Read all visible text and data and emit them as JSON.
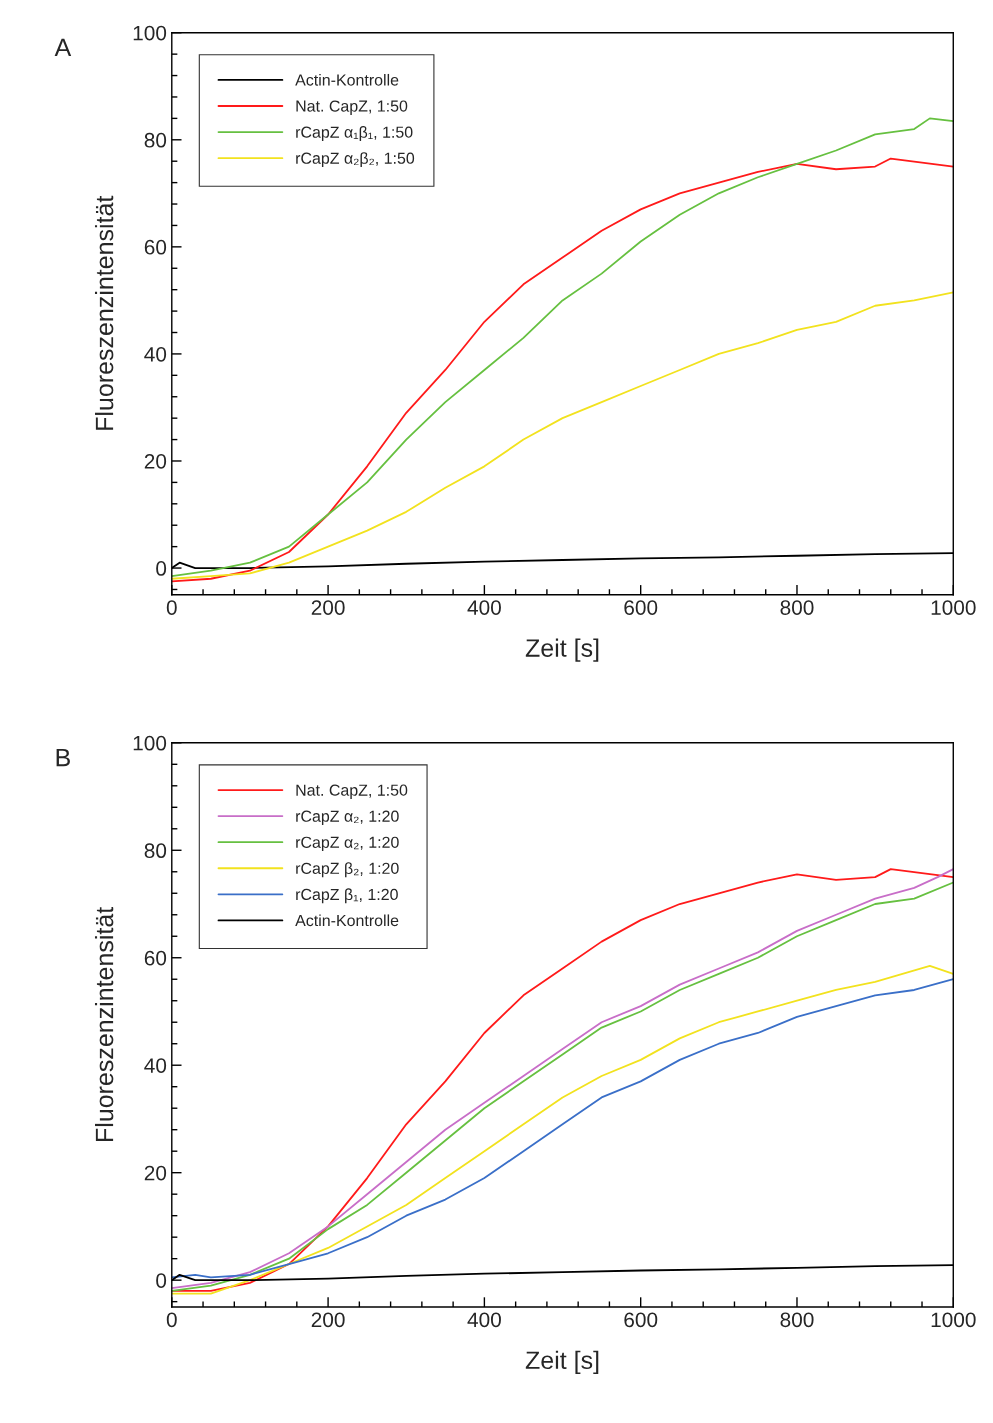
{
  "chart_data": [
    {
      "type": "line",
      "annotations": [
        "A"
      ],
      "xlabel": "Zeit [s]",
      "ylabel": "Fluoreszenzintensität",
      "xlim": [
        0,
        1000
      ],
      "ylim": [
        -5,
        100
      ],
      "xticks": [
        0,
        {
          "value": 40,
          "label": null
        },
        {
          "value": 80,
          "label": null
        },
        {
          "value": 120,
          "label": null
        },
        {
          "value": 160,
          "label": null
        },
        200,
        {
          "value": 240,
          "label": null
        },
        {
          "value": 280,
          "label": null
        },
        {
          "value": 320,
          "label": null
        },
        {
          "value": 360,
          "label": null
        },
        400,
        {
          "value": 440,
          "label": null
        },
        {
          "value": 480,
          "label": null
        },
        {
          "value": 520,
          "label": null
        },
        {
          "value": 560,
          "label": null
        },
        600,
        {
          "value": 640,
          "label": null
        },
        {
          "value": 680,
          "label": null
        },
        {
          "value": 720,
          "label": null
        },
        {
          "value": 760,
          "label": null
        },
        800,
        {
          "value": 840,
          "label": null
        },
        {
          "value": 880,
          "label": null
        },
        {
          "value": 920,
          "label": null
        },
        {
          "value": 960,
          "label": null
        },
        1000
      ],
      "yticks": [
        {
          "value": -4,
          "label": null
        },
        0,
        {
          "value": 4,
          "label": null
        },
        {
          "value": 8,
          "label": null
        },
        {
          "value": 12,
          "label": null
        },
        {
          "value": 16,
          "label": null
        },
        20,
        {
          "value": 24,
          "label": null
        },
        {
          "value": 28,
          "label": null
        },
        {
          "value": 32,
          "label": null
        },
        {
          "value": 36,
          "label": null
        },
        40,
        {
          "value": 44,
          "label": null
        },
        {
          "value": 48,
          "label": null
        },
        {
          "value": 52,
          "label": null
        },
        {
          "value": 56,
          "label": null
        },
        60,
        {
          "value": 64,
          "label": null
        },
        {
          "value": 68,
          "label": null
        },
        {
          "value": 72,
          "label": null
        },
        {
          "value": 76,
          "label": null
        },
        80,
        {
          "value": 84,
          "label": null
        },
        {
          "value": 88,
          "label": null
        },
        {
          "value": 92,
          "label": null
        },
        {
          "value": 96,
          "label": null
        },
        100
      ],
      "grid": false,
      "legend": "top left",
      "marker": "none",
      "line_style": "solid",
      "series": [
        {
          "name": "Actin-Kontrolle",
          "color": "#000000",
          "x": [
            0,
            10,
            30,
            100,
            200,
            300,
            400,
            500,
            600,
            700,
            800,
            900,
            1000
          ],
          "values": [
            0,
            1,
            0,
            0,
            0.3,
            0.8,
            1.2,
            1.5,
            1.8,
            2,
            2.3,
            2.6,
            2.8
          ]
        },
        {
          "name": "Nat. CapZ, 1:50",
          "color": "#ff1a1a",
          "x": [
            0,
            50,
            100,
            150,
            200,
            250,
            300,
            350,
            400,
            450,
            500,
            550,
            600,
            650,
            700,
            750,
            800,
            850,
            900,
            920,
            1000
          ],
          "values": [
            -2.5,
            -2,
            -0.5,
            3,
            10,
            19,
            29,
            37,
            46,
            53,
            58,
            63,
            67,
            70,
            72,
            74,
            75.5,
            74.5,
            75,
            76.5,
            75
          ]
        },
        {
          "name": "rCapZ α₁β₁, 1:50",
          "color": "#66c040",
          "x": [
            0,
            50,
            100,
            150,
            200,
            250,
            300,
            350,
            400,
            450,
            500,
            550,
            600,
            650,
            700,
            750,
            800,
            850,
            900,
            950,
            970,
            1000
          ],
          "values": [
            -1.5,
            -0.5,
            1,
            4,
            10,
            16,
            24,
            31,
            37,
            43,
            50,
            55,
            61,
            66,
            70,
            73,
            75.5,
            78,
            81,
            82,
            84,
            83.5
          ]
        },
        {
          "name": "rCapZ α₂β₂, 1:50",
          "color": "#f2e21e",
          "x": [
            0,
            50,
            100,
            150,
            200,
            250,
            300,
            350,
            400,
            450,
            500,
            550,
            600,
            650,
            700,
            750,
            800,
            850,
            900,
            950,
            1000
          ],
          "values": [
            -2,
            -1.5,
            -1,
            1,
            4,
            7,
            10.5,
            15,
            19,
            24,
            28,
            31,
            34,
            37,
            40,
            42,
            44.5,
            46,
            49,
            50,
            51.5
          ]
        }
      ]
    },
    {
      "type": "line",
      "annotations": [
        "B"
      ],
      "xlabel": "Zeit [s]",
      "ylabel": "Fluoreszenzintensität",
      "xlim": [
        0,
        1000
      ],
      "ylim": [
        -5,
        100
      ],
      "xticks": [
        0,
        {
          "value": 40,
          "label": null
        },
        {
          "value": 80,
          "label": null
        },
        {
          "value": 120,
          "label": null
        },
        {
          "value": 160,
          "label": null
        },
        200,
        {
          "value": 240,
          "label": null
        },
        {
          "value": 280,
          "label": null
        },
        {
          "value": 320,
          "label": null
        },
        {
          "value": 360,
          "label": null
        },
        400,
        {
          "value": 440,
          "label": null
        },
        {
          "value": 480,
          "label": null
        },
        {
          "value": 520,
          "label": null
        },
        {
          "value": 560,
          "label": null
        },
        600,
        {
          "value": 640,
          "label": null
        },
        {
          "value": 680,
          "label": null
        },
        {
          "value": 720,
          "label": null
        },
        {
          "value": 760,
          "label": null
        },
        800,
        {
          "value": 840,
          "label": null
        },
        {
          "value": 880,
          "label": null
        },
        {
          "value": 920,
          "label": null
        },
        {
          "value": 960,
          "label": null
        },
        1000
      ],
      "yticks": [
        {
          "value": -4,
          "label": null
        },
        0,
        {
          "value": 4,
          "label": null
        },
        {
          "value": 8,
          "label": null
        },
        {
          "value": 12,
          "label": null
        },
        {
          "value": 16,
          "label": null
        },
        20,
        {
          "value": 24,
          "label": null
        },
        {
          "value": 28,
          "label": null
        },
        {
          "value": 32,
          "label": null
        },
        {
          "value": 36,
          "label": null
        },
        40,
        {
          "value": 44,
          "label": null
        },
        {
          "value": 48,
          "label": null
        },
        {
          "value": 52,
          "label": null
        },
        {
          "value": 56,
          "label": null
        },
        60,
        {
          "value": 64,
          "label": null
        },
        {
          "value": 68,
          "label": null
        },
        {
          "value": 72,
          "label": null
        },
        {
          "value": 76,
          "label": null
        },
        80,
        {
          "value": 84,
          "label": null
        },
        {
          "value": 88,
          "label": null
        },
        {
          "value": 92,
          "label": null
        },
        {
          "value": 96,
          "label": null
        },
        100
      ],
      "grid": false,
      "legend": "top left",
      "marker": "none",
      "line_style": "solid",
      "series": [
        {
          "name": "Nat. CapZ, 1:50",
          "color": "#ff1a1a",
          "x": [
            0,
            50,
            100,
            150,
            200,
            250,
            300,
            350,
            400,
            450,
            500,
            550,
            600,
            650,
            700,
            750,
            800,
            850,
            900,
            920,
            1000
          ],
          "values": [
            -2,
            -2,
            -0.5,
            3,
            10,
            19,
            29,
            37,
            46,
            53,
            58,
            63,
            67,
            70,
            72,
            74,
            75.5,
            74.5,
            75,
            76.5,
            75
          ]
        },
        {
          "name": "rCapZ α₂, 1:20",
          "color": "#c86ec8",
          "x": [
            0,
            50,
            100,
            150,
            200,
            250,
            300,
            350,
            400,
            450,
            500,
            550,
            600,
            650,
            700,
            750,
            800,
            850,
            900,
            950,
            980,
            1000
          ],
          "values": [
            -1.5,
            -0.5,
            1.5,
            5,
            10,
            16,
            22,
            28,
            33,
            38,
            43,
            48,
            51,
            55,
            58,
            61,
            65,
            68,
            71,
            73,
            75,
            76.5
          ]
        },
        {
          "name": "rCapZ α₂, 1:20",
          "color": "#66c040",
          "x": [
            0,
            50,
            100,
            150,
            200,
            250,
            300,
            350,
            400,
            450,
            500,
            550,
            600,
            650,
            700,
            750,
            800,
            850,
            900,
            950,
            1000
          ],
          "values": [
            -2,
            -1,
            1,
            4,
            9.5,
            14,
            20,
            26,
            32,
            37,
            42,
            47,
            50,
            54,
            57,
            60,
            64,
            67,
            70,
            71,
            74
          ]
        },
        {
          "name": "rCapZ β₂, 1:20",
          "color": "#f2e21e",
          "x": [
            0,
            50,
            100,
            150,
            200,
            250,
            300,
            350,
            400,
            450,
            500,
            550,
            600,
            650,
            700,
            750,
            800,
            850,
            900,
            970,
            1000
          ],
          "values": [
            -2.5,
            -2.5,
            0,
            3,
            6,
            10,
            14,
            19,
            24,
            29,
            34,
            38,
            41,
            45,
            48,
            50,
            52,
            54,
            55.5,
            58.5,
            57
          ]
        },
        {
          "name": "rCapZ β₁, 1:20",
          "color": "#3a6fc8",
          "x": [
            0,
            30,
            50,
            100,
            150,
            200,
            250,
            300,
            350,
            400,
            450,
            500,
            550,
            600,
            650,
            700,
            750,
            800,
            850,
            900,
            950,
            1000
          ],
          "values": [
            0.5,
            1,
            0.5,
            1,
            3,
            5,
            8,
            12,
            15,
            19,
            24,
            29,
            34,
            37,
            41,
            44,
            46,
            49,
            51,
            53,
            54,
            56
          ]
        },
        {
          "name": "Actin-Kontrolle",
          "color": "#000000",
          "x": [
            0,
            10,
            30,
            100,
            200,
            300,
            400,
            500,
            600,
            700,
            800,
            900,
            1000
          ],
          "values": [
            0,
            1,
            0,
            0,
            0.3,
            0.8,
            1.2,
            1.5,
            1.8,
            2,
            2.3,
            2.6,
            2.8
          ]
        }
      ]
    }
  ]
}
